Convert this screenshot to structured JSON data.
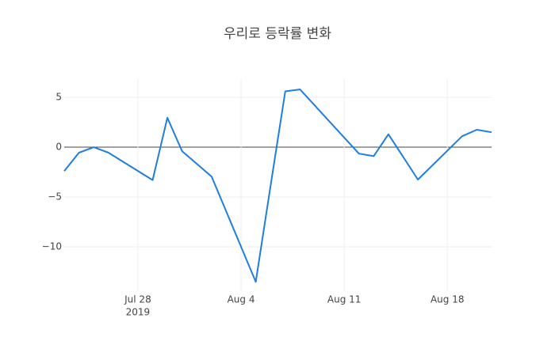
{
  "chart_data": {
    "type": "line",
    "title": "우리로 등락률 변화",
    "x": [
      "2019-07-23",
      "2019-07-24",
      "2019-07-25",
      "2019-07-26",
      "2019-07-29",
      "2019-07-30",
      "2019-07-31",
      "2019-08-02",
      "2019-08-05",
      "2019-08-06",
      "2019-08-07",
      "2019-08-08",
      "2019-08-12",
      "2019-08-13",
      "2019-08-14",
      "2019-08-16",
      "2019-08-19",
      "2019-08-20",
      "2019-08-21"
    ],
    "series": [
      {
        "color": "#1f7ee0",
        "values": [
          -2.4,
          -0.55,
          0,
          -0.55,
          -3.3,
          2.95,
          -0.4,
          -2.95,
          -13.5,
          -3.9,
          5.6,
          5.8,
          -0.65,
          -0.9,
          1.3,
          -3.25,
          1.1,
          1.75,
          1.5
        ]
      }
    ],
    "xlim": [
      "2019-07-23",
      "2019-08-21"
    ],
    "xticks": [
      {
        "value": "2019-07-28",
        "label": "Jul 28",
        "year": "2019"
      },
      {
        "value": "2019-08-04",
        "label": "Aug 4"
      },
      {
        "value": "2019-08-11",
        "label": "Aug 11"
      },
      {
        "value": "2019-08-18",
        "label": "Aug 18"
      }
    ],
    "ylim": [
      -14.44,
      6.83
    ],
    "yticks": [
      {
        "value": -10,
        "label": "−10"
      },
      {
        "value": -5,
        "label": "−5"
      },
      0,
      5
    ],
    "grid": true
  }
}
